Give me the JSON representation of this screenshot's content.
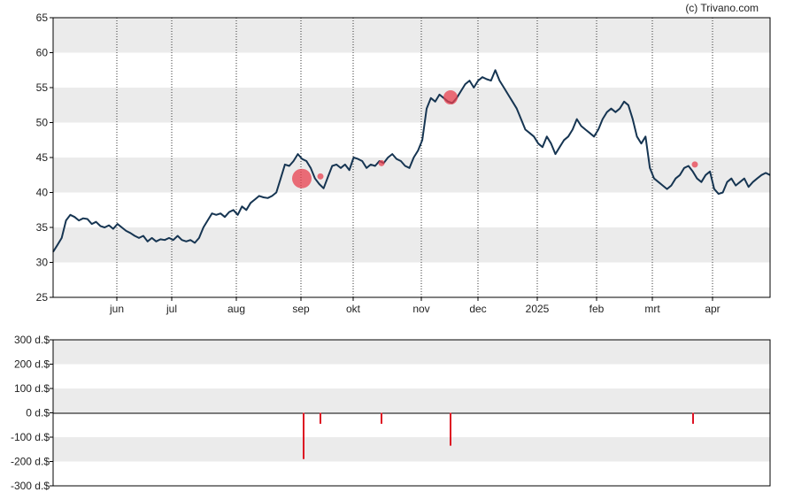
{
  "credit": "(c) Trivano.com",
  "colors": {
    "price_line": "#163552",
    "marker_fill": "#e8404f",
    "band": "#ebebeb",
    "bar": "#dd1122"
  },
  "chart_data": [
    {
      "type": "line",
      "title": "",
      "xlabel": "",
      "ylabel": "",
      "ylim": [
        25,
        65
      ],
      "y_ticks": [
        "25",
        "30",
        "35",
        "40",
        "45",
        "50",
        "55",
        "60",
        "65"
      ],
      "x_ticks": [
        "jun",
        "jul",
        "aug",
        "sep",
        "okt",
        "nov",
        "dec",
        "2025",
        "feb",
        "mrt",
        "apr"
      ],
      "grid": "alternating horizontal bands; dotted vertical lines at month ticks",
      "series": [
        {
          "values": [
            31.5,
            32.5,
            33.5,
            36.0,
            36.8,
            36.5,
            36.0,
            36.3,
            36.2,
            35.5,
            35.8,
            35.2,
            35.0,
            35.3,
            34.8,
            35.5,
            35.0,
            34.5,
            34.2,
            33.8,
            33.5,
            33.8,
            33.0,
            33.5,
            33.0,
            33.3,
            33.2,
            33.5,
            33.2,
            33.8,
            33.2,
            33.0,
            33.2,
            32.8,
            33.5,
            35.0,
            36.0,
            37.0,
            36.8,
            37.0,
            36.5,
            37.2,
            37.5,
            36.8,
            38.0,
            37.5,
            38.5,
            39.0,
            39.5,
            39.3,
            39.2,
            39.5,
            40.0,
            42.0,
            44.0,
            43.8,
            44.5,
            45.5,
            44.8,
            44.5,
            43.5,
            42.0,
            41.2,
            40.6,
            42.2,
            43.8,
            44.0,
            43.5,
            44.0,
            43.2,
            45.0,
            44.8,
            44.5,
            43.5,
            44.0,
            43.8,
            44.5,
            44.2,
            45.0,
            45.5,
            44.8,
            44.5,
            43.8,
            43.5,
            45.0,
            46.0,
            47.5,
            52.0,
            53.5,
            53.0,
            54.0,
            53.5,
            53.0,
            52.8,
            53.5,
            54.5,
            55.5,
            56.0,
            55.0,
            56.0,
            56.5,
            56.2,
            56.0,
            57.5,
            56.0,
            55.0,
            54.0,
            53.0,
            52.0,
            50.5,
            49.0,
            48.5,
            48.0,
            47.0,
            46.5,
            48.0,
            47.0,
            45.5,
            46.5,
            47.5,
            48.0,
            49.0,
            50.5,
            49.5,
            49.0,
            48.5,
            48.0,
            49.0,
            50.5,
            51.5,
            52.0,
            51.5,
            52.0,
            53.0,
            52.5,
            50.5,
            48.0,
            47.0,
            48.0,
            43.5,
            42.0,
            41.5,
            41.0,
            40.5,
            41.0,
            42.0,
            42.5,
            43.5,
            43.8,
            43.0,
            42.0,
            41.5,
            42.5,
            43.0,
            40.5,
            39.8,
            40.0,
            41.5,
            42.0,
            41.0,
            41.5,
            42.0,
            40.8,
            41.5,
            42.0,
            42.5,
            42.8,
            42.5
          ]
        }
      ],
      "insider_markers": [
        {
          "date": "sep",
          "y": 42.0,
          "size": "large"
        },
        {
          "date": "sep",
          "y": 42.3,
          "size": "small"
        },
        {
          "date": "okt",
          "y": 44.2,
          "size": "small"
        },
        {
          "date": "nov",
          "y": 53.6,
          "size": "medium"
        },
        {
          "date": "mrt",
          "y": 44.0,
          "size": "small"
        }
      ]
    },
    {
      "type": "bar",
      "title": "",
      "xlabel": "",
      "ylabel": "",
      "unit": "d.$",
      "ylim": [
        -300,
        300
      ],
      "y_ticks": [
        "300 d.$",
        "200 d.$",
        "100 d.$",
        "0 d.$",
        "-100 d.$",
        "-200 d.$",
        "-300 d.$"
      ],
      "grid": "alternating horizontal bands",
      "bars": [
        {
          "date": "sep",
          "value": -190
        },
        {
          "date": "sep",
          "value": -45
        },
        {
          "date": "okt",
          "value": -45
        },
        {
          "date": "nov",
          "value": -135
        },
        {
          "date": "mrt",
          "value": -45
        }
      ]
    }
  ]
}
